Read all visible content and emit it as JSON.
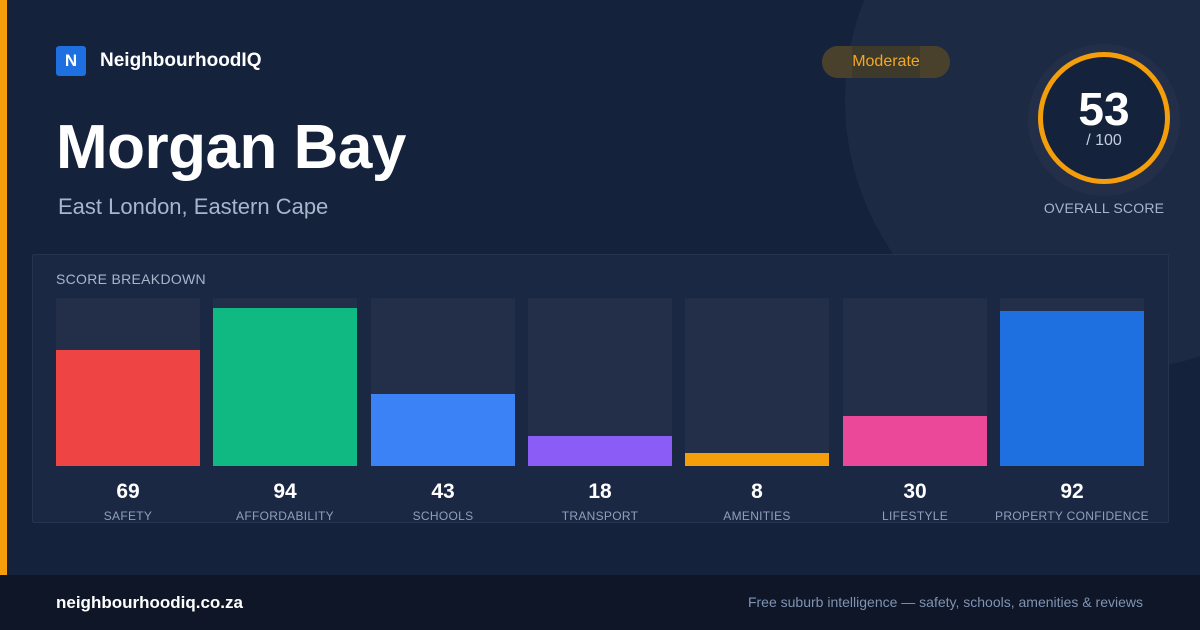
{
  "brand": {
    "logo_letter": "N",
    "name": "NeighbourhoodIQ",
    "accent_color": "#f59e0b",
    "logo_color": "#1e6fe0"
  },
  "header": {
    "title": "Morgan Bay",
    "subtitle": "East London, Eastern Cape",
    "rating_badge": "Moderate"
  },
  "overall": {
    "score": "53",
    "max_label": "/ 100",
    "label": "OVERALL SCORE"
  },
  "breakdown": {
    "title": "SCORE BREAKDOWN",
    "items": [
      {
        "label": "SAFETY",
        "value": 69,
        "color": "#ef4444"
      },
      {
        "label": "AFFORDABILITY",
        "value": 94,
        "color": "#10b981"
      },
      {
        "label": "SCHOOLS",
        "value": 43,
        "color": "#3b82f6"
      },
      {
        "label": "TRANSPORT",
        "value": 18,
        "color": "#8b5cf6"
      },
      {
        "label": "AMENITIES",
        "value": 8,
        "color": "#f59e0b"
      },
      {
        "label": "LIFESTYLE",
        "value": 30,
        "color": "#ec4899"
      },
      {
        "label": "PROPERTY CONFIDENCE",
        "value": 92,
        "color": "#1e6fe0"
      }
    ]
  },
  "footer": {
    "url": "neighbourhoodiq.co.za",
    "tagline": "Free suburb intelligence — safety, schools, amenities & reviews"
  }
}
